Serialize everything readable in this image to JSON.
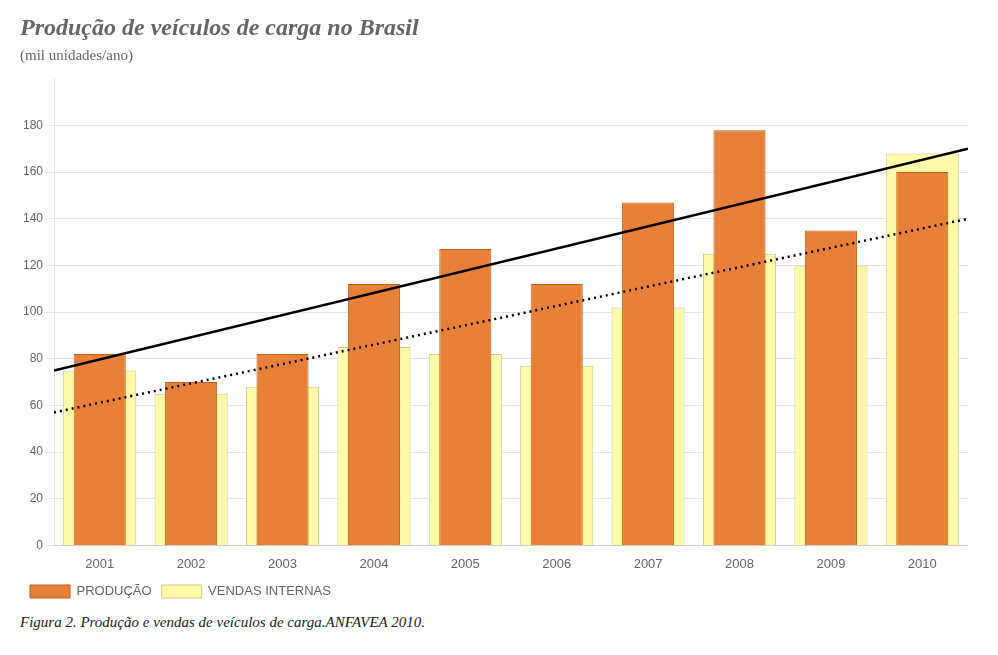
{
  "chart_data": {
    "type": "bar",
    "title": "Produção de veículos de carga no Brasil",
    "subtitle": "(mil unidades/ano)",
    "annotations": [
      "Figura 2. Produção e vendas de veículos de carga.ANFAVEA 2010."
    ],
    "categories": [
      "2001",
      "2002",
      "2003",
      "2004",
      "2005",
      "2006",
      "2007",
      "2008",
      "2009",
      "2010"
    ],
    "series": [
      {
        "name": "PRODUÇÃO",
        "color": "#E8803A",
        "values": [
          82,
          70,
          82,
          112,
          127,
          112,
          147,
          178,
          135,
          160
        ]
      },
      {
        "name": "VENDAS INTERNAS",
        "color": "#FFFAAA",
        "values": [
          75,
          65,
          68,
          85,
          82,
          77,
          102,
          125,
          120,
          168
        ]
      }
    ],
    "trend_lines": [
      {
        "color": "#000000",
        "line_style": "solid",
        "values": [
          75,
          170
        ]
      },
      {
        "color": "#000000",
        "line_style": "dotted",
        "values": [
          57,
          140
        ]
      }
    ],
    "ylim": [
      0,
      200
    ],
    "yticks": [
      0,
      20,
      40,
      60,
      80,
      100,
      120,
      140,
      160,
      180
    ],
    "grid": true,
    "legend": "bottom-left"
  }
}
